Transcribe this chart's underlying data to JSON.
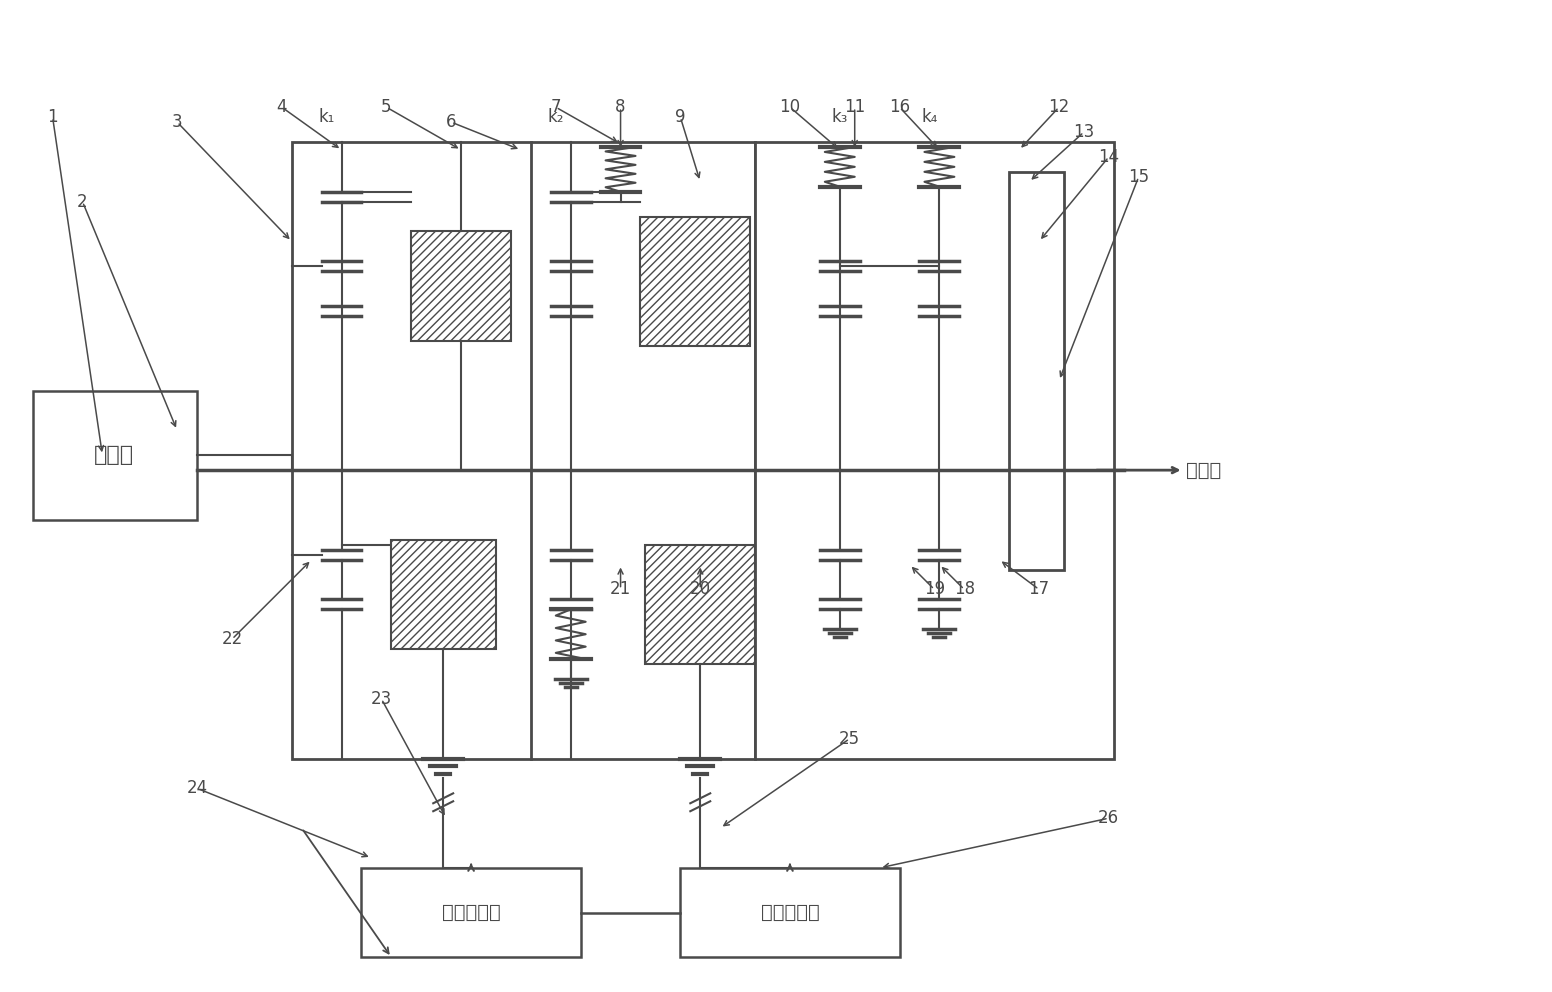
{
  "bg_color": "#ffffff",
  "lc": "#4a4a4a",
  "tc": "#4a4a4a",
  "fig_width": 15.52,
  "fig_height": 9.92,
  "labels": {
    "engine": "发动机",
    "motor_ctrl": "电机控制器",
    "battery": "动力电池组",
    "output": "输出轴"
  }
}
